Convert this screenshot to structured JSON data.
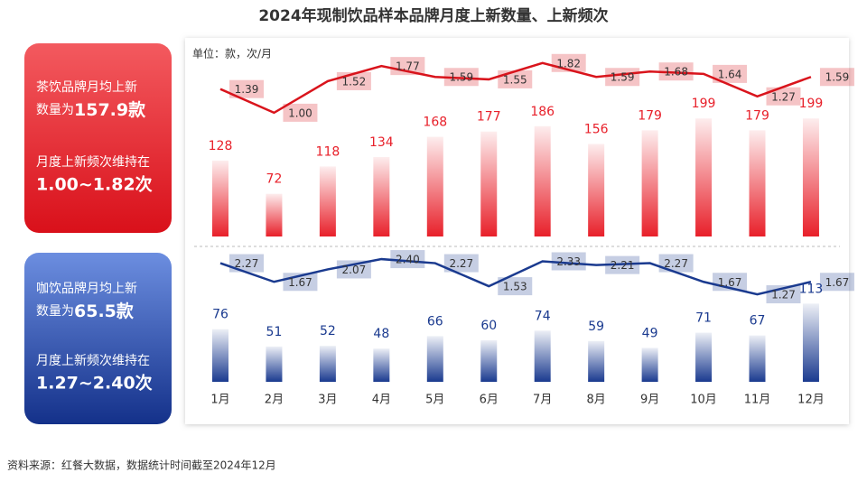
{
  "title": "2024年现制饮品样本品牌月度上新数量、上新频次",
  "unit": "单位：款，次/月",
  "source": "资料来源：红餐大数据，数据统计时间截至2024年12月",
  "panels": [
    {
      "line1": "茶饮品牌月均上新",
      "prefix": "数量为",
      "highlight": "157.9款",
      "line3": "月度上新频次维持在",
      "range": "1.00~1.82次"
    },
    {
      "line1": "咖饮品牌月均上新",
      "prefix": "数量为",
      "highlight": "65.5款",
      "line3": "月度上新频次维持在",
      "range": "1.27~2.40次"
    }
  ],
  "chart_data": [
    {
      "type": "bar",
      "ylim": [
        0,
        315
      ],
      "y2lim": [
        -1.04,
        2.04
      ],
      "series": [
        {
          "color": "#e8202a",
          "values": [
            128,
            72,
            118,
            134,
            168,
            177,
            186,
            156,
            179,
            199,
            179,
            199
          ]
        },
        {
          "type": "line",
          "axis": "y2",
          "color": "#d9141c",
          "values": [
            1.39,
            1.0,
            1.52,
            1.77,
            1.59,
            1.55,
            1.82,
            1.59,
            1.68,
            1.64,
            1.27,
            1.59
          ],
          "value_labels": [
            "1.39",
            "1.00",
            "1.52",
            "1.77",
            "1.59",
            "1.55",
            "1.82",
            "1.59",
            "1.68",
            "1.64",
            "1.27",
            "1.59"
          ]
        }
      ]
    },
    {
      "type": "bar",
      "ylim": [
        0,
        180
      ],
      "y2lim": [
        -1.54,
        2.46
      ],
      "categories": [
        "1月",
        "2月",
        "3月",
        "4月",
        "5月",
        "6月",
        "7月",
        "8月",
        "9月",
        "10月",
        "11月",
        "12月"
      ],
      "series": [
        {
          "color": "#1a3a8f",
          "values": [
            76,
            51,
            52,
            48,
            66,
            60,
            74,
            59,
            49,
            71,
            67,
            113
          ]
        },
        {
          "type": "line",
          "axis": "y2",
          "color": "#1a3a8f",
          "values": [
            2.27,
            1.67,
            2.07,
            2.4,
            2.27,
            1.53,
            2.33,
            2.21,
            2.27,
            1.67,
            1.27,
            1.67
          ],
          "value_labels": [
            "2.27",
            "1.67",
            "2.07",
            "2.40",
            "2.27",
            "1.53",
            "2.33",
            "2.21",
            "2.27",
            "1.67",
            "1.27",
            "1.67"
          ]
        }
      ]
    }
  ]
}
